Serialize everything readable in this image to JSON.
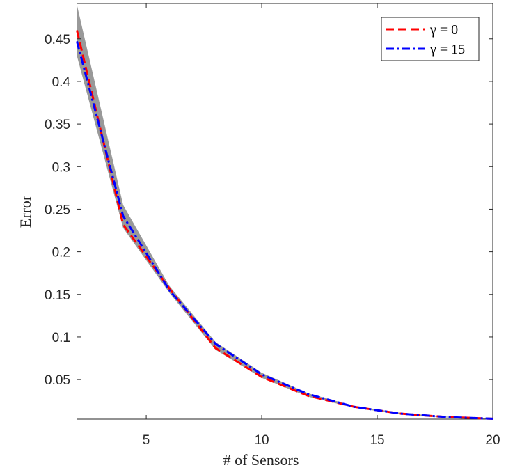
{
  "chart_data": {
    "type": "line",
    "xlabel": "# of Sensors",
    "ylabel": "Error",
    "x": [
      2,
      4,
      6,
      8,
      10,
      12,
      14,
      16,
      18,
      20
    ],
    "series": [
      {
        "name": "γ = 0",
        "color": "#ff0000",
        "dash": "dashed",
        "values": [
          0.46,
          0.232,
          0.157,
          0.087,
          0.053,
          0.031,
          0.018,
          0.01,
          0.006,
          0.004
        ]
      },
      {
        "name": "γ = 15",
        "color": "#0000ff",
        "dash": "dashdot",
        "values": [
          0.447,
          0.242,
          0.155,
          0.092,
          0.056,
          0.033,
          0.018,
          0.01,
          0.006,
          0.004
        ]
      }
    ],
    "band": {
      "color": "#999999",
      "upper": [
        0.49,
        0.255,
        0.16,
        0.094,
        0.058,
        0.034,
        0.019,
        0.011,
        0.0065,
        0.0042
      ],
      "lower": [
        0.43,
        0.228,
        0.152,
        0.085,
        0.052,
        0.03,
        0.017,
        0.009,
        0.0055,
        0.0035
      ]
    },
    "xlim": [
      2,
      20
    ],
    "xticks": [
      5,
      10,
      15,
      20
    ],
    "ylim": [
      0.0035,
      0.4915
    ],
    "yticks": [
      0.05,
      0.1,
      0.15,
      0.2,
      0.25,
      0.3,
      0.35,
      0.4,
      0.45
    ],
    "legend": "top-right"
  }
}
